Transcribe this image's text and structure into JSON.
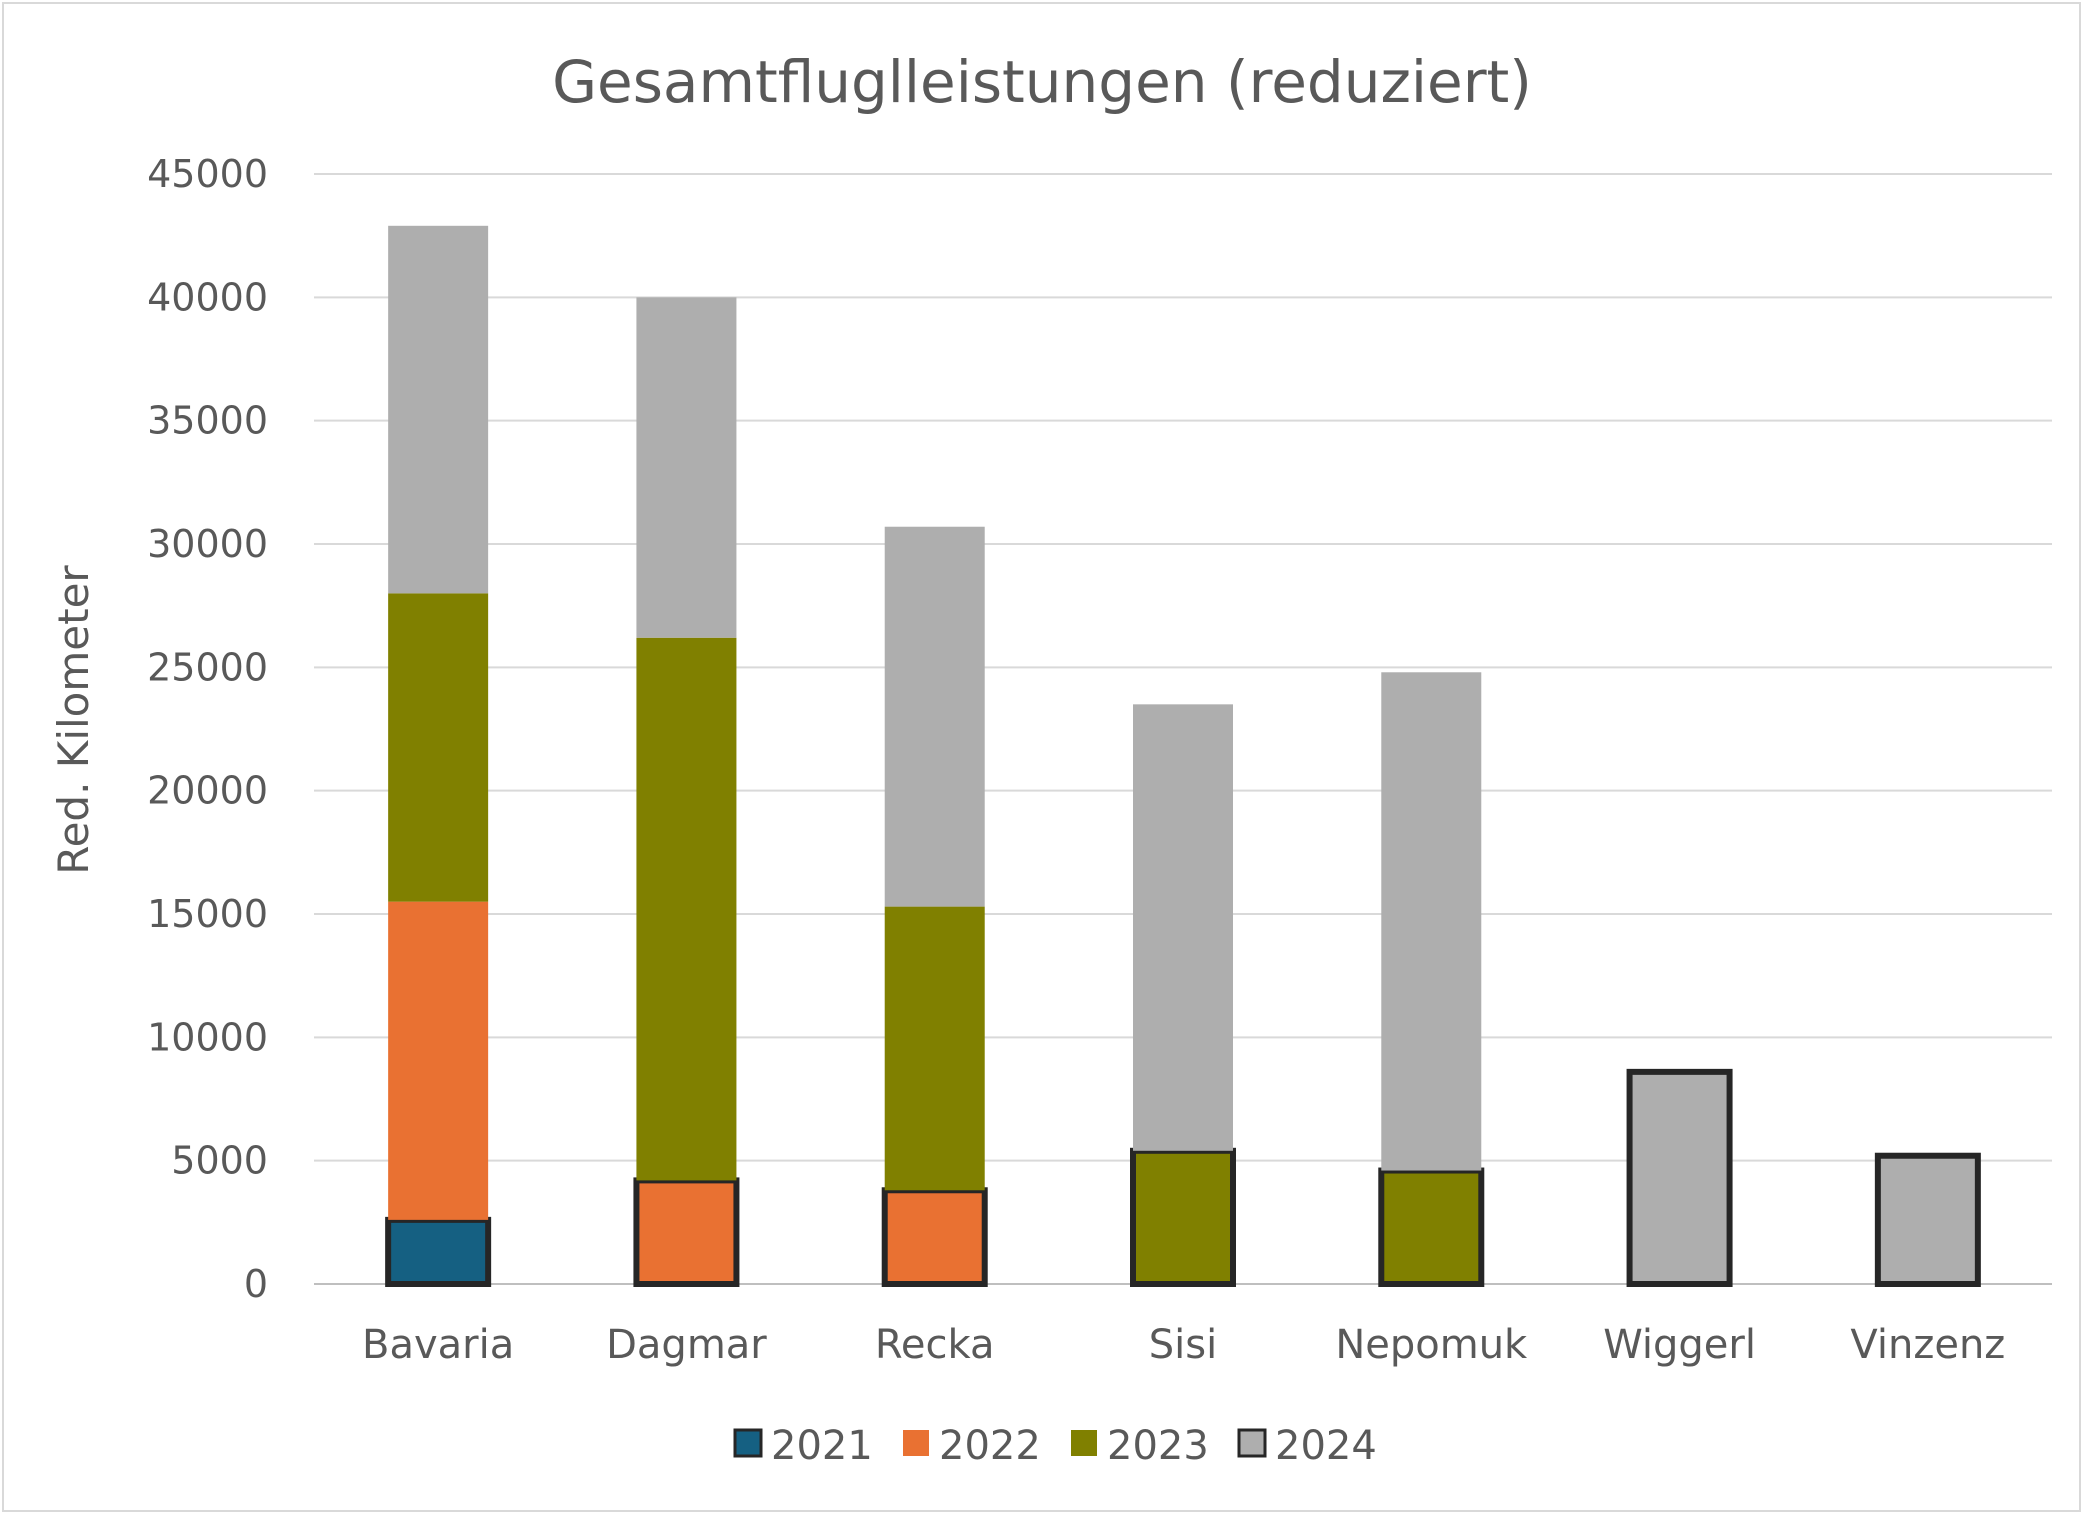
{
  "chart_data": {
    "type": "bar",
    "stacked": true,
    "title": "Gesamtfluglleistungen (reduziert)",
    "ylabel": "Red. Kilometer",
    "xlabel": "",
    "ylim": [
      0,
      45000
    ],
    "yticks": [
      0,
      5000,
      10000,
      15000,
      20000,
      25000,
      30000,
      35000,
      40000,
      45000
    ],
    "grid": true,
    "legend_position": "bottom",
    "categories": [
      "Bavaria",
      "Dagmar",
      "Recka",
      "Sisi",
      "Nepomuk",
      "Wiggerl",
      "Vinzenz"
    ],
    "series": [
      {
        "name": "2021",
        "color": "#156082",
        "values": [
          2600,
          0,
          0,
          0,
          0,
          0,
          0
        ]
      },
      {
        "name": "2022",
        "color": "#E97132",
        "values": [
          12900,
          4200,
          3800,
          0,
          0,
          0,
          0
        ]
      },
      {
        "name": "2023",
        "color": "#808000",
        "values": [
          12500,
          22000,
          11500,
          5400,
          4600,
          0,
          0
        ]
      },
      {
        "name": "2024",
        "color": "#AEAEAE",
        "values": [
          14900,
          13800,
          15400,
          18100,
          20200,
          8600,
          5200
        ]
      }
    ],
    "first_segment_outline": "#262626"
  }
}
